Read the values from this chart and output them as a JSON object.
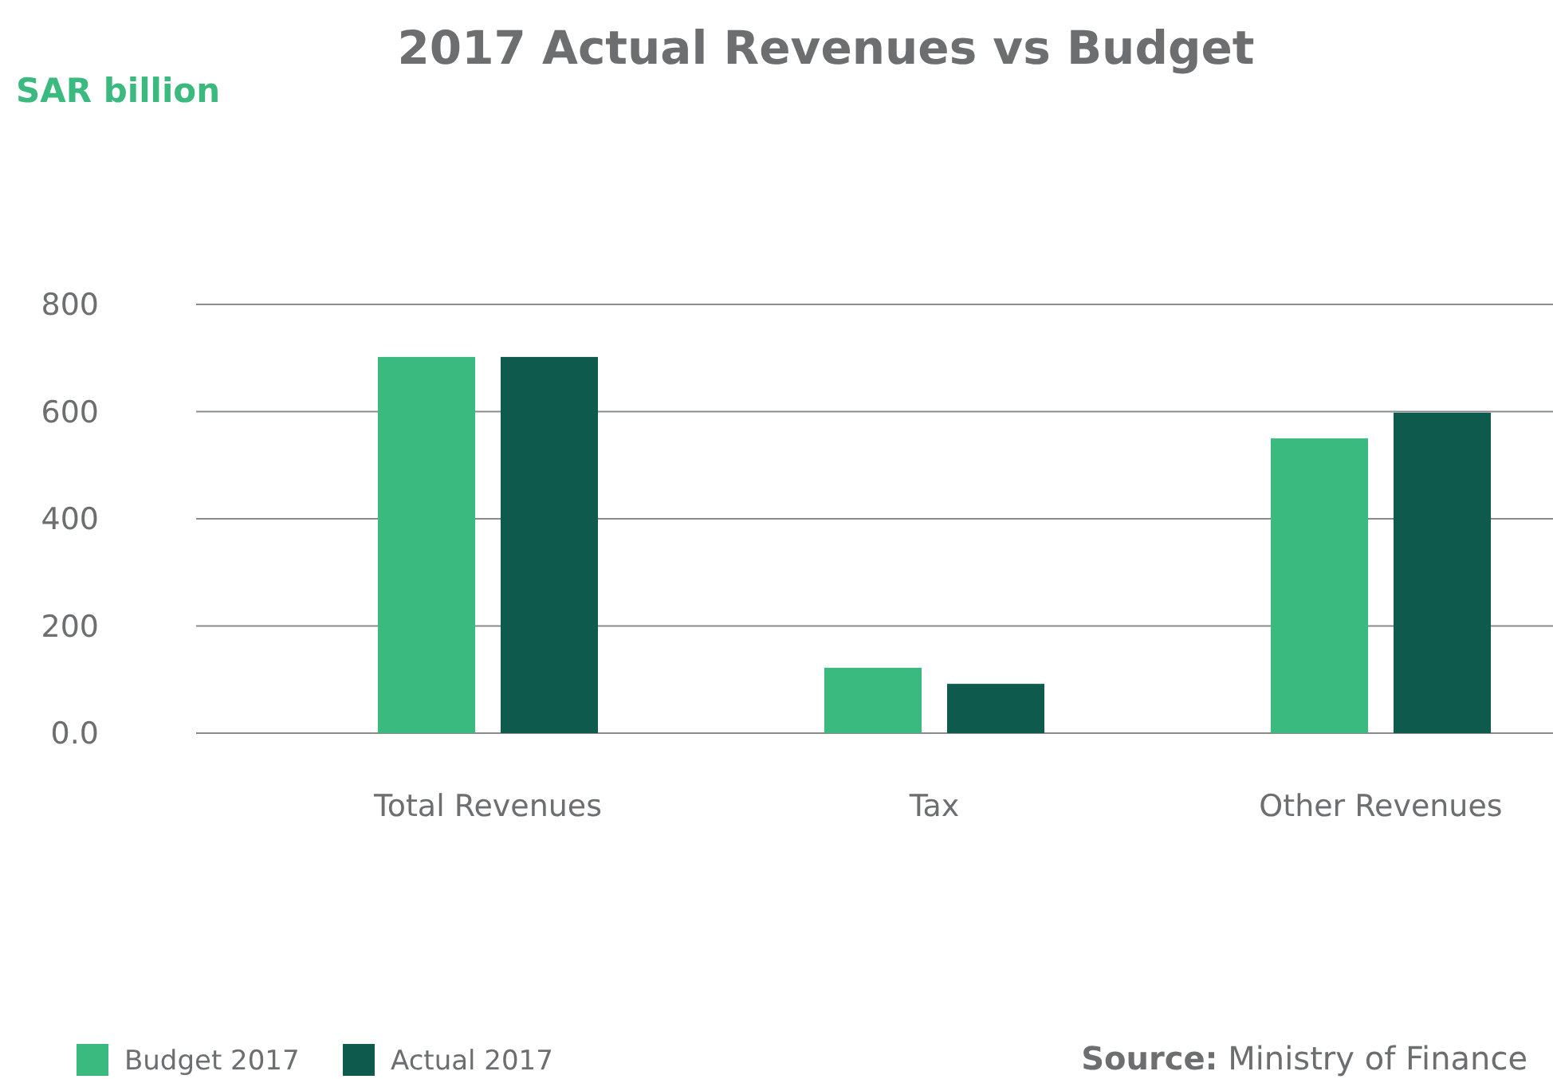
{
  "chart_data": {
    "type": "bar",
    "title": "2017 Actual Revenues vs Budget",
    "categories": [
      "Total Revenues",
      "Tax",
      "Other Revenues"
    ],
    "series": [
      {
        "name": "Budget 2017",
        "color": "#3bba80",
        "values": [
          702,
          122,
          550
        ]
      },
      {
        "name": "Actual 2017",
        "color": "#0e5a4c",
        "values": [
          702,
          92,
          598
        ]
      }
    ],
    "ylim": [
      0,
      800
    ],
    "yticks": [
      {
        "value": 0,
        "label": "0.0"
      },
      200,
      400,
      600,
      800
    ],
    "grid": "y",
    "legend": "bottom left",
    "annotations": [
      "SAR billion",
      "Source: Ministry of Finance"
    ]
  }
}
